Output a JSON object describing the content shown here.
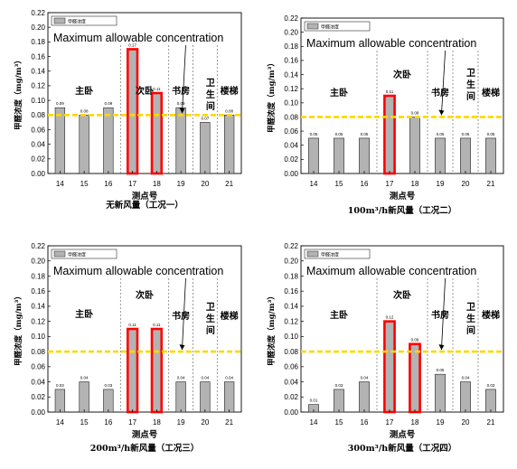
{
  "chart_data": [
    {
      "type": "bar",
      "ylim": [
        0,
        0.22
      ],
      "yticks": [
        "0.00",
        "0.02",
        "0.04",
        "0.06",
        "0.08",
        "0.10",
        "0.12",
        "0.14",
        "0.16",
        "0.18",
        "0.20",
        "0.22"
      ],
      "categories": [
        "14",
        "15",
        "16",
        "17",
        "18",
        "19",
        "20",
        "21"
      ],
      "values": [
        0.09,
        0.08,
        0.09,
        0.17,
        0.11,
        0.09,
        0.07,
        0.08
      ],
      "labels": [
        "0.09",
        "0.08",
        "0.09",
        "0.17",
        "0.11",
        "0.09",
        "0.07",
        "0.08"
      ],
      "highlighted": [
        false,
        false,
        false,
        true,
        true,
        false,
        false,
        false
      ],
      "legend": "甲醛浓度",
      "annotation": "Maximum allowable concentration",
      "limit": 0.08,
      "xlabel": "测点号",
      "ylabel": "甲醛浓度（mg/m³）",
      "caption": "无新风量（工况一）",
      "rooms": [
        "主卧",
        "次卧",
        "书房",
        "卫生间",
        "楼梯"
      ]
    },
    {
      "type": "bar",
      "ylim": [
        0,
        0.22
      ],
      "yticks": [
        "0.00",
        "0.02",
        "0.04",
        "0.06",
        "0.08",
        "0.10",
        "0.12",
        "0.14",
        "0.16",
        "0.18",
        "0.20",
        "0.22"
      ],
      "categories": [
        "14",
        "15",
        "16",
        "17",
        "18",
        "19",
        "20",
        "21"
      ],
      "values": [
        0.05,
        0.05,
        0.05,
        0.11,
        0.08,
        0.05,
        0.05,
        0.05
      ],
      "labels": [
        "0.05",
        "0.05",
        "0.05",
        "0.11",
        "0.08",
        "0.05",
        "0.05",
        "0.05"
      ],
      "highlighted": [
        false,
        false,
        false,
        true,
        false,
        false,
        false,
        false
      ],
      "legend": "甲醛浓度",
      "annotation": "Maximum allowable concentration",
      "limit": 0.08,
      "xlabel": "测点号",
      "ylabel": "甲醛浓度（mg/m³）",
      "caption": "100m³/h新风量（工况二）",
      "rooms": [
        "主卧",
        "次卧",
        "书房",
        "卫生间",
        "楼梯"
      ]
    },
    {
      "type": "bar",
      "ylim": [
        0,
        0.22
      ],
      "yticks": [
        "0.00",
        "0.02",
        "0.04",
        "0.06",
        "0.08",
        "0.10",
        "0.12",
        "0.14",
        "0.16",
        "0.18",
        "0.20",
        "0.22"
      ],
      "categories": [
        "14",
        "15",
        "16",
        "17",
        "18",
        "19",
        "20",
        "21"
      ],
      "values": [
        0.03,
        0.04,
        0.03,
        0.11,
        0.11,
        0.04,
        0.04,
        0.04
      ],
      "labels": [
        "0.03",
        "0.04",
        "0.03",
        "0.11",
        "0.11",
        "0.04",
        "0.04",
        "0.04"
      ],
      "highlighted": [
        false,
        false,
        false,
        true,
        true,
        false,
        false,
        false
      ],
      "legend": "甲醛浓度",
      "annotation": "Maximum allowable concentration",
      "limit": 0.08,
      "xlabel": "测点号",
      "ylabel": "甲醛浓度（mg/m³）",
      "caption": "200m³/h新风量（工况三）",
      "rooms": [
        "主卧",
        "次卧",
        "书房",
        "卫生间",
        "楼梯"
      ]
    },
    {
      "type": "bar",
      "ylim": [
        0,
        0.22
      ],
      "yticks": [
        "0.00",
        "0.02",
        "0.04",
        "0.06",
        "0.08",
        "0.10",
        "0.12",
        "0.14",
        "0.16",
        "0.18",
        "0.20",
        "0.22"
      ],
      "categories": [
        "14",
        "15",
        "16",
        "17",
        "18",
        "19",
        "20",
        "21"
      ],
      "values": [
        0.01,
        0.03,
        0.04,
        0.12,
        0.09,
        0.05,
        0.04,
        0.03
      ],
      "labels": [
        "0.01",
        "0.03",
        "0.04",
        "0.12",
        "0.09",
        "0.05",
        "0.04",
        "0.03"
      ],
      "highlighted": [
        false,
        false,
        false,
        true,
        true,
        false,
        false,
        false
      ],
      "legend": "甲醛浓度",
      "annotation": "Maximum allowable concentration",
      "limit": 0.08,
      "xlabel": "测点号",
      "ylabel": "甲醛浓度（mg/m³）",
      "caption": "300m³/h新风量（工况四）",
      "rooms": [
        "主卧",
        "次卧",
        "书房",
        "卫生间",
        "楼梯"
      ]
    }
  ]
}
